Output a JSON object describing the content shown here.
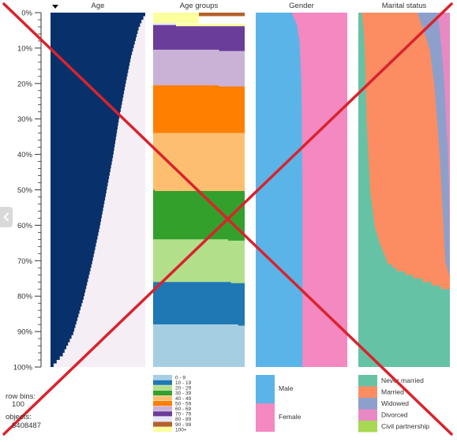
{
  "chart_data": {
    "type": "table",
    "y_axis": {
      "ticks": [
        "0%",
        "10%",
        "20%",
        "30%",
        "40%",
        "50%",
        "60%",
        "70%",
        "80%",
        "90%",
        "100%"
      ]
    },
    "sort_indicator": "sort-descending-triangle-icon",
    "columns": [
      {
        "title": "Age",
        "kind": "bar-profile",
        "bar_color": "#08306b",
        "background_color": "#f5eef5",
        "profile": [
          [
            0,
            100
          ],
          [
            1,
            98
          ],
          [
            2,
            96
          ],
          [
            4,
            93
          ],
          [
            6,
            91
          ],
          [
            8,
            89
          ],
          [
            12,
            85
          ],
          [
            20,
            79
          ],
          [
            30,
            72
          ],
          [
            40,
            66
          ],
          [
            50,
            59
          ],
          [
            60,
            52
          ],
          [
            70,
            44
          ],
          [
            80,
            35
          ],
          [
            90,
            24
          ],
          [
            96,
            13
          ],
          [
            100,
            0
          ]
        ]
      },
      {
        "title": "Age groups",
        "kind": "stacked",
        "segments": [
          {
            "label": "100+",
            "color": "#fbff9e",
            "start": 0,
            "end": 3
          },
          {
            "label": "90 - 99",
            "color": "#b5612b",
            "start": 0,
            "end": 1
          },
          {
            "label": "80 - 89",
            "color": "#e6e6ff",
            "start": 3,
            "end": 3.5
          },
          {
            "label": "70 - 79",
            "color": "#6a3d9a",
            "start": 3.5,
            "end": 10.5
          },
          {
            "label": "60 - 69",
            "color": "#cab2d6",
            "start": 10.5,
            "end": 20.5
          },
          {
            "label": "50 - 59",
            "color": "#ff7f00",
            "start": 20.5,
            "end": 34
          },
          {
            "label": "40 - 49",
            "color": "#fdbf6f",
            "start": 34,
            "end": 50
          },
          {
            "label": "30 - 39",
            "color": "#33a02c",
            "start": 50,
            "end": 64
          },
          {
            "label": "20 - 29",
            "color": "#b2df8a",
            "start": 64,
            "end": 76
          },
          {
            "label": "10 - 19",
            "color": "#1f78b4",
            "start": 76,
            "end": 88
          },
          {
            "label": "0 - 9",
            "color": "#a6cee3",
            "start": 88,
            "end": 100
          }
        ],
        "legend": [
          {
            "label": "0 - 9",
            "color": "#a6cee3"
          },
          {
            "label": "10 - 19",
            "color": "#1f78b4"
          },
          {
            "label": "20 - 29",
            "color": "#b2df8a"
          },
          {
            "label": "30 - 39",
            "color": "#33a02c"
          },
          {
            "label": "40 - 49",
            "color": "#fdbf6f"
          },
          {
            "label": "50 - 59",
            "color": "#ff7f00"
          },
          {
            "label": "60 - 69",
            "color": "#cab2d6"
          },
          {
            "label": "70 - 79",
            "color": "#6a3d9a"
          },
          {
            "label": "80 - 89",
            "color": "#e6e6ff"
          },
          {
            "label": "90 - 99",
            "color": "#b5612b"
          },
          {
            "label": "100+",
            "color": "#fbff9e"
          }
        ]
      },
      {
        "title": "Gender",
        "kind": "two-part",
        "parts": [
          {
            "label": "Male",
            "color": "#5ab4e8",
            "profile": [
              [
                0,
                40
              ],
              [
                3,
                45
              ],
              [
                8,
                48
              ],
              [
                20,
                50
              ],
              [
                50,
                51
              ],
              [
                100,
                51
              ]
            ]
          },
          {
            "label": "Female",
            "color": "#f488c0"
          }
        ],
        "legend": [
          {
            "label": "Male",
            "color": "#5ab4e8"
          },
          {
            "label": "Female",
            "color": "#f488c0"
          }
        ]
      },
      {
        "title": "Marital status",
        "kind": "stacked-profiles",
        "categories": [
          {
            "label": "Never married",
            "color": "#66c2a5"
          },
          {
            "label": "Married",
            "color": "#fc8d62"
          },
          {
            "label": "Widowed",
            "color": "#8da0cb"
          },
          {
            "label": "Divorced",
            "color": "#e78ac3"
          },
          {
            "label": "Civil partnership",
            "color": "#a6d854"
          }
        ],
        "boundaries": [
          [
            [
              0,
              4
            ],
            [
              5,
              6
            ],
            [
              10,
              7
            ],
            [
              20,
              8
            ],
            [
              30,
              9
            ],
            [
              40,
              11
            ],
            [
              50,
              13
            ],
            [
              60,
              18
            ],
            [
              65,
              24
            ],
            [
              70,
              32
            ],
            [
              72,
              42
            ],
            [
              74,
              60
            ],
            [
              78,
              100
            ],
            [
              100,
              100
            ]
          ],
          [
            [
              0,
              65
            ],
            [
              5,
              72
            ],
            [
              10,
              78
            ],
            [
              20,
              83
            ],
            [
              30,
              86
            ],
            [
              40,
              89
            ],
            [
              50,
              91
            ],
            [
              60,
              93
            ],
            [
              70,
              95
            ],
            [
              74,
              100
            ],
            [
              100,
              100
            ]
          ],
          [
            [
              0,
              87
            ],
            [
              5,
              89
            ],
            [
              10,
              91
            ],
            [
              20,
              94
            ],
            [
              30,
              96
            ],
            [
              40,
              98
            ],
            [
              50,
              99
            ],
            [
              60,
              99.5
            ],
            [
              74,
              100
            ],
            [
              100,
              100
            ]
          ],
          [
            [
              0,
              100
            ],
            [
              100,
              100
            ]
          ]
        ]
      }
    ],
    "info": {
      "row_bins_label": "row bins:",
      "row_bins_value": "100",
      "objects_label": "objects:",
      "objects_value": "5408487"
    },
    "overlay": {
      "kind": "cross",
      "color": "#d9232d"
    }
  }
}
